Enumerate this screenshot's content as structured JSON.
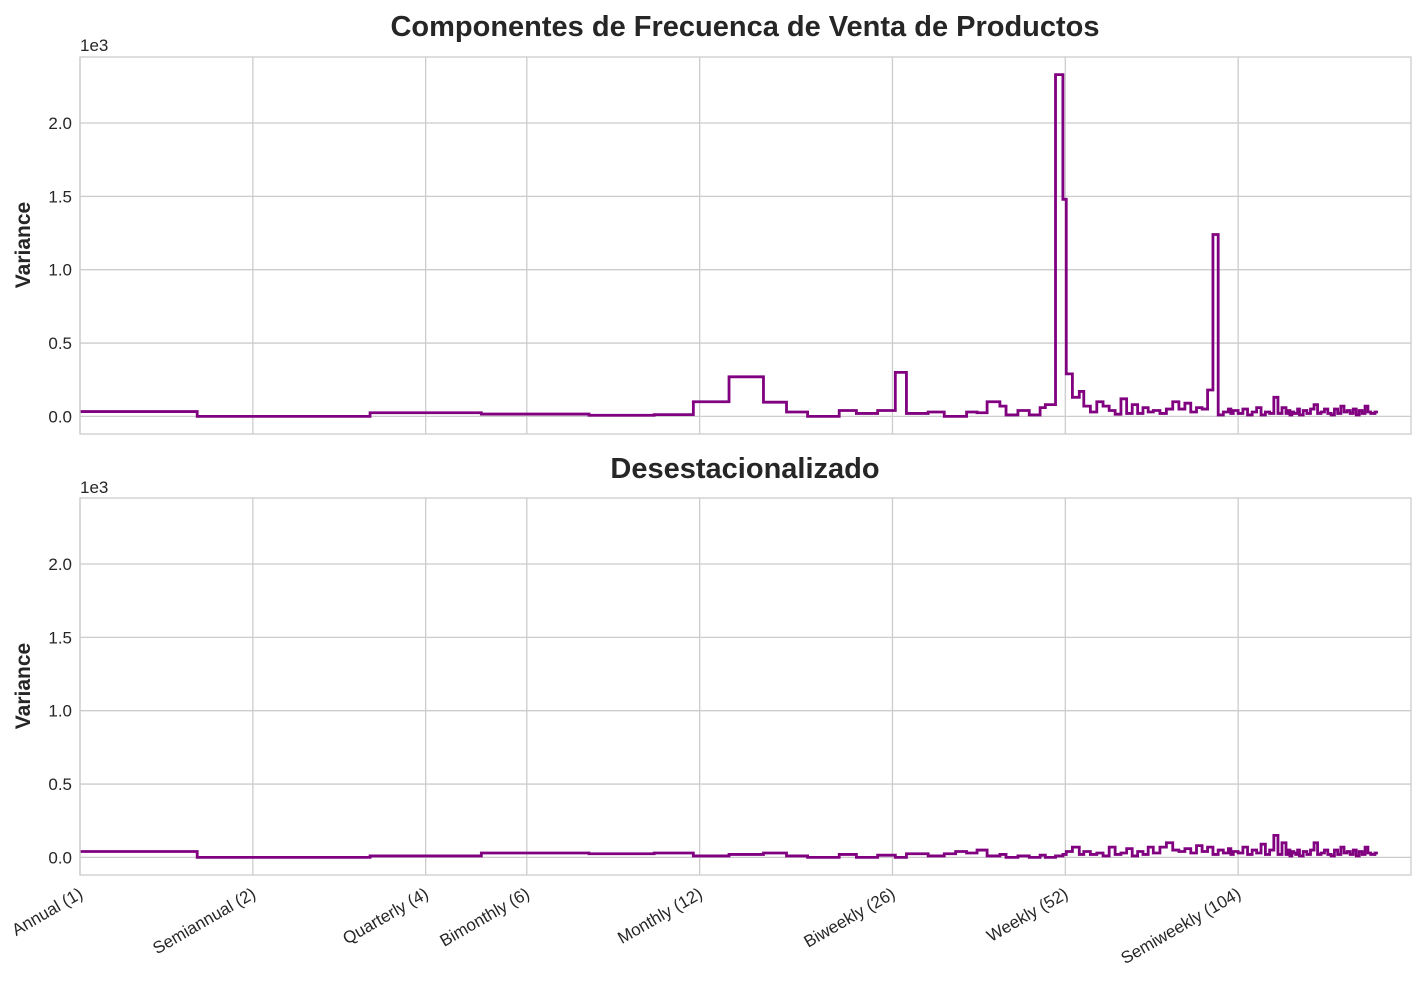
{
  "chart_data": [
    {
      "type": "line",
      "drawstyle": "steps",
      "title": "Componentes de Frecuenca de Venta de Productos",
      "xlabel": "",
      "ylabel": "Variance",
      "y_offset_label": "1e3",
      "xscale": "log",
      "xlim": [
        1,
        208
      ],
      "ylim": [
        -0.12,
        2.45
      ],
      "y_unit_multiplier": 1000,
      "yticks": [
        0.0,
        0.5,
        1.0,
        1.5,
        2.0
      ],
      "ytick_labels": [
        "0.0",
        "0.5",
        "1.0",
        "1.5",
        "2.0"
      ],
      "xticks": [
        1,
        2,
        4,
        6,
        12,
        26,
        52,
        104
      ],
      "xtick_labels": [
        "Annual (1)",
        "Semiannual (2)",
        "Quarterly (4)",
        "Bimonthly (6)",
        "Monthly (12)",
        "Biweekly (26)",
        "Weekly (52)",
        "Semiweekly (104)"
      ],
      "grid": true,
      "color": "#800080",
      "x": [
        1,
        1.6,
        3.2,
        5,
        7.7,
        10,
        11.7,
        13.5,
        15.5,
        17,
        18.5,
        21,
        22.5,
        24.5,
        26.3,
        27.5,
        30,
        32,
        33.5,
        35,
        36.5,
        38,
        40,
        41,
        43,
        45,
        47,
        48,
        50,
        51.5,
        52.2,
        53.5,
        55,
        56,
        57.5,
        59,
        60.5,
        62,
        63.5,
        65,
        66.5,
        68,
        69.5,
        71,
        72.5,
        74,
        76,
        78,
        80,
        82,
        84,
        86,
        88,
        90,
        92,
        94,
        96,
        98,
        100,
        101,
        102,
        104,
        106,
        108,
        110,
        112,
        114,
        116,
        118,
        120,
        122,
        124,
        126,
        127,
        128,
        129,
        130,
        131,
        132,
        133,
        135,
        137,
        139,
        141,
        143,
        145,
        147,
        149,
        151,
        153,
        155,
        157,
        159,
        161,
        163,
        165,
        167,
        169,
        171,
        173,
        175,
        177,
        180
      ],
      "y": [
        0.033,
        0.0,
        0.025,
        0.016,
        0.008,
        0.012,
        0.1,
        0.27,
        0.097,
        0.03,
        0.0,
        0.04,
        0.02,
        0.04,
        0.3,
        0.02,
        0.03,
        0.0,
        0.0,
        0.03,
        0.025,
        0.1,
        0.07,
        0.01,
        0.04,
        0.01,
        0.06,
        0.08,
        2.33,
        1.48,
        0.29,
        0.13,
        0.17,
        0.07,
        0.03,
        0.1,
        0.07,
        0.04,
        0.015,
        0.12,
        0.02,
        0.08,
        0.02,
        0.06,
        0.03,
        0.04,
        0.02,
        0.05,
        0.1,
        0.05,
        0.09,
        0.03,
        0.06,
        0.05,
        0.18,
        1.24,
        0.01,
        0.03,
        0.05,
        0.02,
        0.04,
        0.02,
        0.05,
        0.01,
        0.03,
        0.06,
        0.01,
        0.03,
        0.02,
        0.13,
        0.02,
        0.06,
        0.02,
        0.04,
        0.01,
        0.03,
        0.02,
        0.02,
        0.05,
        0.01,
        0.04,
        0.02,
        0.05,
        0.08,
        0.02,
        0.03,
        0.05,
        0.02,
        0.01,
        0.05,
        0.02,
        0.07,
        0.03,
        0.04,
        0.02,
        0.05,
        0.01,
        0.04,
        0.02,
        0.07,
        0.03,
        0.02,
        0.03
      ]
    },
    {
      "type": "line",
      "drawstyle": "steps",
      "title": "Desestacionalizado",
      "xlabel": "",
      "ylabel": "Variance",
      "y_offset_label": "1e3",
      "xscale": "log",
      "xlim": [
        1,
        208
      ],
      "ylim": [
        -0.12,
        2.45
      ],
      "y_unit_multiplier": 1000,
      "yticks": [
        0.0,
        0.5,
        1.0,
        1.5,
        2.0
      ],
      "ytick_labels": [
        "0.0",
        "0.5",
        "1.0",
        "1.5",
        "2.0"
      ],
      "xticks": [
        1,
        2,
        4,
        6,
        12,
        26,
        52,
        104
      ],
      "xtick_labels": [
        "Annual (1)",
        "Semiannual (2)",
        "Quarterly (4)",
        "Bimonthly (6)",
        "Monthly (12)",
        "Biweekly (26)",
        "Weekly (52)",
        "Semiweekly (104)"
      ],
      "grid": true,
      "color": "#800080",
      "x": [
        1,
        1.6,
        3.2,
        5,
        7.7,
        10,
        11.7,
        13.5,
        15.5,
        17,
        18.5,
        21,
        22.5,
        24.5,
        26.3,
        27.5,
        30,
        32,
        33.5,
        35,
        36.5,
        38,
        40,
        41,
        43,
        45,
        47,
        48,
        50,
        51.5,
        52.2,
        53.5,
        55,
        56,
        57.5,
        59,
        60.5,
        62,
        63.5,
        65,
        66.5,
        68,
        69.5,
        71,
        72.5,
        74,
        76,
        78,
        80,
        82,
        84,
        86,
        88,
        90,
        92,
        94,
        96,
        98,
        100,
        101,
        102,
        104,
        106,
        108,
        110,
        112,
        114,
        116,
        118,
        120,
        122,
        124,
        126,
        127,
        128,
        129,
        130,
        131,
        132,
        133,
        135,
        137,
        139,
        141,
        143,
        145,
        147,
        149,
        151,
        153,
        155,
        157,
        159,
        161,
        163,
        165,
        167,
        169,
        171,
        173,
        175,
        177,
        180
      ],
      "y": [
        0.04,
        0.0,
        0.01,
        0.03,
        0.025,
        0.03,
        0.01,
        0.02,
        0.03,
        0.01,
        0.0,
        0.02,
        0.0,
        0.015,
        0.0,
        0.025,
        0.01,
        0.025,
        0.04,
        0.03,
        0.05,
        0.01,
        0.02,
        0.0,
        0.01,
        0.0,
        0.015,
        0.0,
        0.01,
        0.02,
        0.04,
        0.07,
        0.02,
        0.04,
        0.02,
        0.03,
        0.01,
        0.07,
        0.02,
        0.03,
        0.06,
        0.01,
        0.04,
        0.02,
        0.07,
        0.03,
        0.07,
        0.1,
        0.05,
        0.04,
        0.06,
        0.03,
        0.08,
        0.04,
        0.07,
        0.02,
        0.05,
        0.03,
        0.06,
        0.02,
        0.04,
        0.03,
        0.07,
        0.02,
        0.05,
        0.03,
        0.09,
        0.02,
        0.05,
        0.15,
        0.02,
        0.1,
        0.02,
        0.05,
        0.01,
        0.04,
        0.03,
        0.02,
        0.05,
        0.01,
        0.04,
        0.02,
        0.05,
        0.1,
        0.02,
        0.03,
        0.05,
        0.02,
        0.01,
        0.05,
        0.02,
        0.07,
        0.03,
        0.04,
        0.02,
        0.05,
        0.01,
        0.04,
        0.02,
        0.07,
        0.03,
        0.02,
        0.03
      ]
    }
  ]
}
